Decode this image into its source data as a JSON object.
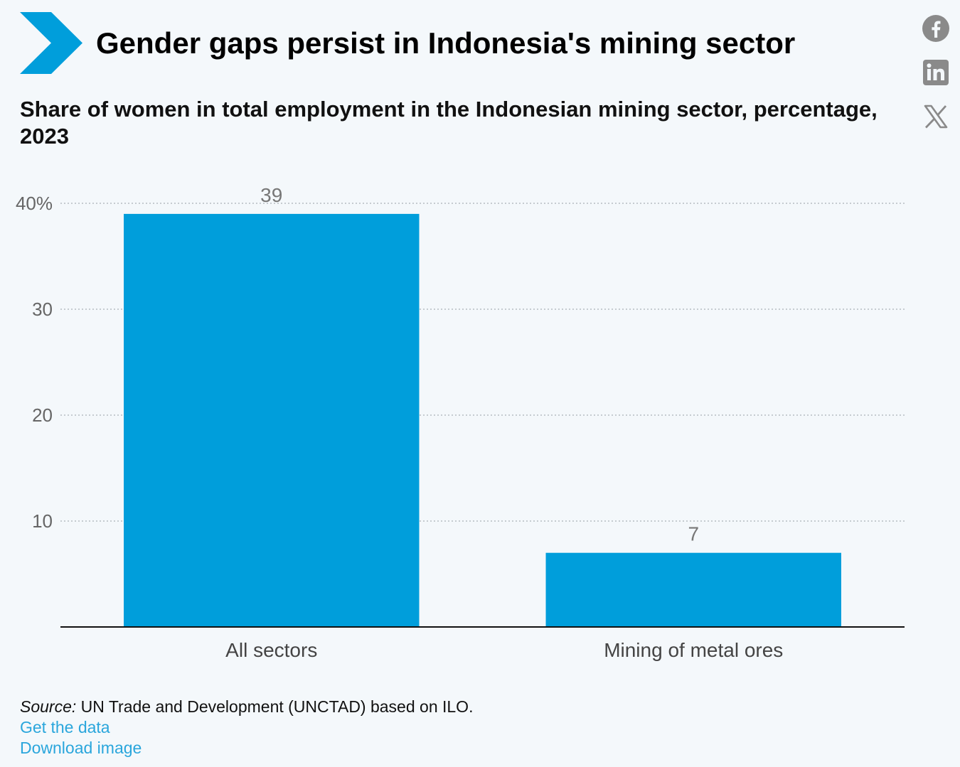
{
  "header": {
    "title": "Gender gaps persist in Indonesia's mining sector",
    "subtitle": "Share of women in total employment in the Indonesian mining sector, percentage, 2023",
    "logo_color": "#009edb"
  },
  "share": {
    "icons": [
      "facebook-icon",
      "linkedin-icon",
      "x-icon"
    ],
    "icon_color": "#8a8a8a"
  },
  "chart_data": {
    "type": "bar",
    "title": "Gender gaps persist in Indonesia's mining sector",
    "subtitle": "Share of women in total employment in the Indonesian mining sector, percentage, 2023",
    "categories": [
      "All sectors",
      "Mining of metal ores"
    ],
    "values": [
      39,
      7
    ],
    "data_labels": [
      "39",
      "7"
    ],
    "ylim": [
      0,
      40
    ],
    "yticks": [
      10,
      20,
      30,
      40
    ],
    "ytick_labels": [
      "10",
      "20",
      "30",
      "40%"
    ],
    "grid": true,
    "bar_color": "#009edb",
    "xlabel": "",
    "ylabel": ""
  },
  "footer": {
    "source_label": "Source:",
    "source_text": " UN Trade and Development (UNCTAD) based on ILO.",
    "get_data": "Get the data",
    "download_image": "Download image",
    "link_color": "#2aa6dc"
  }
}
